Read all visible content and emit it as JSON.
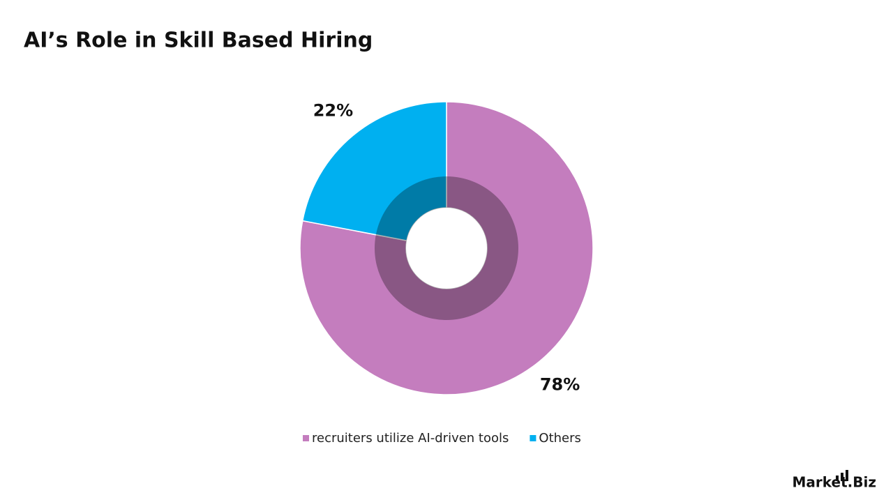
{
  "chart_data": {
    "type": "donut",
    "title": "AI’s Role in Skill Based Hiring",
    "categories": [
      "recruiters utilize AI-driven tools",
      "Others"
    ],
    "values": [
      78,
      22
    ],
    "value_labels": [
      "78%",
      "22%"
    ],
    "colors": [
      "#c47dbe",
      "#00b0f0"
    ],
    "legend": "bottom",
    "watermark": "Market.Biz"
  }
}
